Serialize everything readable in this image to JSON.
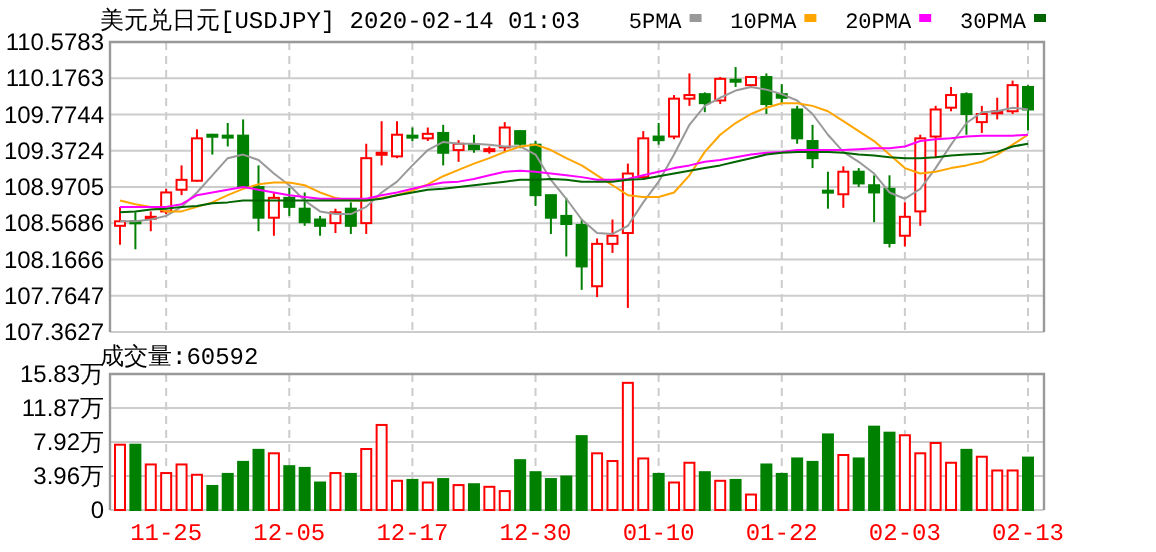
{
  "chart_data": [
    {
      "type": "candlestick",
      "title": "美元兑日元[USDJPY] 2020-02-14 01:03",
      "legend": "top right",
      "grid": true,
      "tick_labels": "y",
      "categories": [
        null,
        null,
        null,
        null,
        null,
        null,
        null,
        null,
        null,
        null,
        null,
        null,
        null,
        null,
        null,
        null,
        null,
        null,
        null,
        null,
        null,
        null,
        null,
        null,
        null,
        null,
        null,
        null,
        null,
        null,
        null,
        null,
        null,
        null,
        null,
        null,
        null,
        null,
        null,
        null,
        null,
        null,
        null,
        null,
        null,
        null,
        null,
        null,
        null,
        null,
        null,
        null,
        null,
        null,
        null,
        null,
        null,
        null,
        null,
        null
      ],
      "ylim": [
        107.3627,
        110.5783
      ],
      "yticks": [
        107.3627,
        107.7647,
        108.1666,
        108.5686,
        108.9705,
        109.3724,
        109.7744,
        110.1763,
        110.5783
      ],
      "ohlc": [
        [
          108.54,
          108.75,
          108.33,
          108.59
        ],
        [
          108.59,
          108.69,
          108.28,
          108.58
        ],
        [
          108.63,
          108.7,
          108.48,
          108.64
        ],
        [
          108.7,
          108.95,
          108.67,
          108.91
        ],
        [
          108.94,
          109.21,
          108.88,
          109.05
        ],
        [
          109.04,
          109.61,
          109.03,
          109.51
        ],
        [
          109.55,
          109.56,
          109.33,
          109.54
        ],
        [
          109.54,
          109.68,
          109.42,
          109.52
        ],
        [
          109.54,
          109.72,
          108.96,
          108.97
        ],
        [
          108.97,
          109.21,
          108.48,
          108.63
        ],
        [
          108.63,
          108.91,
          108.43,
          108.85
        ],
        [
          108.85,
          108.96,
          108.65,
          108.75
        ],
        [
          108.73,
          108.91,
          108.54,
          108.58
        ],
        [
          108.61,
          108.65,
          108.43,
          108.54
        ],
        [
          108.57,
          108.73,
          108.46,
          108.69
        ],
        [
          108.73,
          108.8,
          108.45,
          108.54
        ],
        [
          108.57,
          109.45,
          108.45,
          109.29
        ],
        [
          109.33,
          109.7,
          109.21,
          109.35
        ],
        [
          109.31,
          109.7,
          109.29,
          109.55
        ],
        [
          109.54,
          109.63,
          109.48,
          109.52
        ],
        [
          109.51,
          109.63,
          109.48,
          109.56
        ],
        [
          109.57,
          109.66,
          109.21,
          109.35
        ],
        [
          109.38,
          109.49,
          109.25,
          109.45
        ],
        [
          109.44,
          109.55,
          109.35,
          109.39
        ],
        [
          109.37,
          109.42,
          109.34,
          109.39
        ],
        [
          109.41,
          109.69,
          109.36,
          109.63
        ],
        [
          109.59,
          109.6,
          109.4,
          109.45
        ],
        [
          109.44,
          109.48,
          108.76,
          108.88
        ],
        [
          108.88,
          108.88,
          108.45,
          108.63
        ],
        [
          108.65,
          108.85,
          108.2,
          108.56
        ],
        [
          108.55,
          108.61,
          107.83,
          108.09
        ],
        [
          107.87,
          108.4,
          107.75,
          108.34
        ],
        [
          108.34,
          108.61,
          108.24,
          108.43
        ],
        [
          108.46,
          109.23,
          107.63,
          109.12
        ],
        [
          109.08,
          109.59,
          109.05,
          109.51
        ],
        [
          109.53,
          109.68,
          109.44,
          109.49
        ],
        [
          109.53,
          109.99,
          109.5,
          109.95
        ],
        [
          109.95,
          110.23,
          109.87,
          109.99
        ],
        [
          110.0,
          110.02,
          109.8,
          109.9
        ],
        [
          109.93,
          110.19,
          109.89,
          110.17
        ],
        [
          110.16,
          110.3,
          110.08,
          110.14
        ],
        [
          110.1,
          110.2,
          110.08,
          110.19
        ],
        [
          110.19,
          110.23,
          109.78,
          109.89
        ],
        [
          110.0,
          110.11,
          109.89,
          109.96
        ],
        [
          109.83,
          109.87,
          109.45,
          109.51
        ],
        [
          109.48,
          109.66,
          109.18,
          109.29
        ],
        [
          108.93,
          109.14,
          108.73,
          108.91
        ],
        [
          108.89,
          109.2,
          108.74,
          109.14
        ],
        [
          109.14,
          109.18,
          108.97,
          109.01
        ],
        [
          108.99,
          109.1,
          108.58,
          108.91
        ],
        [
          108.95,
          109.1,
          108.3,
          108.35
        ],
        [
          108.43,
          108.8,
          108.31,
          108.64
        ],
        [
          108.7,
          109.55,
          108.54,
          109.51
        ],
        [
          109.53,
          109.87,
          109.29,
          109.83
        ],
        [
          109.85,
          110.08,
          109.81,
          109.99
        ],
        [
          110.0,
          110.02,
          109.55,
          109.78
        ],
        [
          109.69,
          109.87,
          109.57,
          109.78
        ],
        [
          109.79,
          109.96,
          109.72,
          109.81
        ],
        [
          109.81,
          110.15,
          109.78,
          110.1
        ],
        [
          110.08,
          110.1,
          109.6,
          109.83
        ]
      ],
      "colors": [
        "#ff0000",
        "#008000",
        "#ff0000",
        "#ff0000",
        "#ff0000",
        "#ff0000",
        "#008000",
        "#008000",
        "#008000",
        "#008000",
        "#ff0000",
        "#008000",
        "#008000",
        "#008000",
        "#ff0000",
        "#008000",
        "#ff0000",
        "#ff0000",
        "#ff0000",
        "#008000",
        "#ff0000",
        "#008000",
        "#ff0000",
        "#008000",
        "#ff0000",
        "#ff0000",
        "#008000",
        "#008000",
        "#008000",
        "#008000",
        "#008000",
        "#ff0000",
        "#ff0000",
        "#ff0000",
        "#ff0000",
        "#008000",
        "#ff0000",
        "#ff0000",
        "#008000",
        "#ff0000",
        "#008000",
        "#ff0000",
        "#008000",
        "#008000",
        "#008000",
        "#008000",
        "#008000",
        "#ff0000",
        "#008000",
        "#008000",
        "#008000",
        "#ff0000",
        "#ff0000",
        "#ff0000",
        "#ff0000",
        "#008000",
        "#ff0000",
        "#ff0000",
        "#ff0000",
        "#008000"
      ],
      "series": [
        {
          "name": "5PMA",
          "type": "line",
          "color": "#999999",
          "values": [
            108.59,
            108.59,
            108.61,
            108.65,
            108.75,
            108.91,
            109.1,
            109.29,
            109.33,
            109.27,
            109.12,
            108.99,
            108.82,
            108.7,
            108.67,
            108.67,
            108.75,
            108.91,
            109.03,
            109.21,
            109.38,
            109.47,
            109.45,
            109.45,
            109.44,
            109.42,
            109.42,
            109.33,
            109.05,
            108.84,
            108.61,
            108.46,
            108.45,
            108.54,
            108.8,
            109.03,
            109.33,
            109.66,
            109.87,
            109.96,
            110.04,
            110.08,
            110.05,
            110.0,
            109.93,
            109.78,
            109.55,
            109.36,
            109.25,
            109.12,
            108.91,
            108.84,
            108.95,
            109.18,
            109.44,
            109.68,
            109.8,
            109.81,
            109.85,
            109.83
          ]
        },
        {
          "name": "10PMA",
          "type": "line",
          "color": "#ffa500",
          "values": [
            108.82,
            108.78,
            108.75,
            108.7,
            108.7,
            108.75,
            108.8,
            108.88,
            108.95,
            109.0,
            109.02,
            109.02,
            108.99,
            108.91,
            108.85,
            108.82,
            108.82,
            108.85,
            108.88,
            108.93,
            109.0,
            109.09,
            109.16,
            109.23,
            109.29,
            109.36,
            109.42,
            109.44,
            109.38,
            109.29,
            109.21,
            109.1,
            108.99,
            108.88,
            108.86,
            108.86,
            108.91,
            109.1,
            109.36,
            109.55,
            109.68,
            109.78,
            109.85,
            109.9,
            109.9,
            109.87,
            109.81,
            109.7,
            109.59,
            109.48,
            109.33,
            109.18,
            109.12,
            109.14,
            109.18,
            109.21,
            109.25,
            109.33,
            109.44,
            109.55
          ]
        },
        {
          "name": "20PMA",
          "type": "line",
          "color": "#ff00ff",
          "values": [
            108.75,
            108.75,
            108.75,
            108.75,
            108.78,
            108.88,
            108.91,
            108.94,
            108.97,
            108.94,
            108.91,
            108.88,
            108.86,
            108.84,
            108.84,
            108.84,
            108.84,
            108.88,
            108.91,
            108.95,
            108.99,
            109.02,
            109.03,
            109.06,
            109.1,
            109.14,
            109.15,
            109.14,
            109.12,
            109.1,
            109.08,
            109.05,
            109.05,
            109.06,
            109.1,
            109.14,
            109.18,
            109.21,
            109.25,
            109.27,
            109.3,
            109.33,
            109.35,
            109.36,
            109.38,
            109.38,
            109.38,
            109.38,
            109.39,
            109.4,
            109.4,
            109.42,
            109.48,
            109.5,
            109.51,
            109.53,
            109.54,
            109.54,
            109.54,
            109.55
          ]
        },
        {
          "name": "30PMA",
          "type": "line",
          "color": "#006400",
          "values": [
            108.69,
            108.7,
            108.72,
            108.73,
            108.75,
            108.76,
            108.79,
            108.8,
            108.82,
            108.82,
            108.82,
            108.82,
            108.82,
            108.82,
            108.82,
            108.82,
            108.82,
            108.84,
            108.88,
            108.91,
            108.94,
            108.95,
            108.97,
            108.99,
            109.01,
            109.03,
            109.05,
            109.05,
            109.06,
            109.05,
            109.03,
            109.03,
            109.03,
            109.05,
            109.06,
            109.09,
            109.12,
            109.15,
            109.18,
            109.21,
            109.25,
            109.29,
            109.33,
            109.35,
            109.36,
            109.36,
            109.36,
            109.35,
            109.33,
            109.32,
            109.3,
            109.29,
            109.29,
            109.3,
            109.32,
            109.33,
            109.34,
            109.36,
            109.42,
            109.45
          ]
        }
      ]
    },
    {
      "type": "bar",
      "title": "成交量:60592",
      "grid": true,
      "categories": [
        null,
        null,
        null,
        "11-25",
        null,
        null,
        null,
        null,
        null,
        null,
        null,
        "12-05",
        null,
        null,
        null,
        null,
        null,
        null,
        null,
        "12-17",
        null,
        null,
        null,
        null,
        null,
        null,
        null,
        "12-30",
        null,
        null,
        null,
        null,
        null,
        null,
        null,
        "01-10",
        null,
        null,
        null,
        null,
        null,
        null,
        null,
        "01-22",
        null,
        null,
        null,
        null,
        null,
        null,
        null,
        "02-03",
        null,
        null,
        null,
        null,
        null,
        null,
        null,
        "02-13"
      ],
      "ylim": [
        0,
        15.83
      ],
      "yticks": [
        0,
        {
          "value": 3.96,
          "label": "3.96万"
        },
        {
          "value": 7.92,
          "label": "7.92万"
        },
        {
          "value": 11.87,
          "label": "11.87万"
        },
        {
          "value": 15.83,
          "label": "15.83万"
        }
      ],
      "values": [
        7.6,
        7.6,
        5.3,
        4.3,
        5.3,
        4.1,
        2.8,
        4.2,
        5.6,
        7.0,
        6.6,
        5.1,
        4.9,
        3.2,
        4.3,
        4.2,
        7.1,
        9.9,
        3.4,
        3.5,
        3.2,
        3.6,
        2.9,
        3.0,
        2.7,
        2.2,
        5.8,
        4.4,
        3.6,
        3.9,
        8.6,
        6.6,
        5.7,
        14.8,
        6.0,
        4.2,
        3.2,
        5.5,
        4.4,
        3.4,
        3.5,
        1.8,
        5.3,
        4.2,
        6.0,
        5.6,
        8.8,
        6.4,
        6.0,
        9.7,
        9.0,
        8.7,
        6.6,
        7.8,
        5.5,
        7.0,
        6.2,
        4.6,
        4.6,
        6.1
      ],
      "colors": [
        "#ff0000",
        "#008000",
        "#ff0000",
        "#ff0000",
        "#ff0000",
        "#ff0000",
        "#008000",
        "#008000",
        "#008000",
        "#008000",
        "#ff0000",
        "#008000",
        "#008000",
        "#008000",
        "#ff0000",
        "#008000",
        "#ff0000",
        "#ff0000",
        "#ff0000",
        "#008000",
        "#ff0000",
        "#008000",
        "#ff0000",
        "#008000",
        "#ff0000",
        "#ff0000",
        "#008000",
        "#008000",
        "#008000",
        "#008000",
        "#008000",
        "#ff0000",
        "#ff0000",
        "#ff0000",
        "#ff0000",
        "#008000",
        "#ff0000",
        "#ff0000",
        "#008000",
        "#ff0000",
        "#008000",
        "#ff0000",
        "#008000",
        "#008000",
        "#008000",
        "#008000",
        "#008000",
        "#ff0000",
        "#008000",
        "#008000",
        "#008000",
        "#ff0000",
        "#ff0000",
        "#ff0000",
        "#ff0000",
        "#008000",
        "#ff0000",
        "#ff0000",
        "#ff0000",
        "#008000"
      ]
    }
  ]
}
